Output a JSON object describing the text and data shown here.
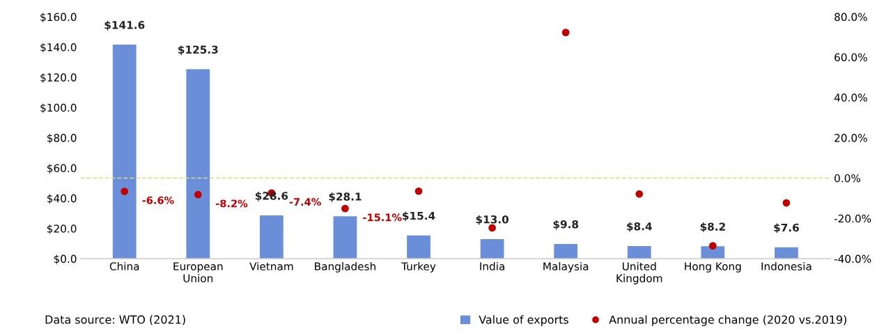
{
  "chart_data": {
    "type": "bar",
    "categories": [
      "China",
      "European\nUnion",
      "Vietnam",
      "Bangladesh",
      "Turkey",
      "India",
      "Malaysia",
      "United\nKingdom",
      "Hong Kong",
      "Indonesia"
    ],
    "series": [
      {
        "name": "Value of exports",
        "color": "#6a8fd8",
        "values": [
          141.6,
          125.3,
          28.6,
          28.1,
          15.4,
          13.0,
          9.8,
          8.4,
          8.2,
          7.6
        ],
        "value_labels": [
          "$141.6",
          "$125.3",
          "$28.6",
          "$28.1",
          "$15.4",
          "$13.0",
          "$9.8",
          "$8.4",
          "$8.2",
          "$7.6"
        ]
      },
      {
        "name": "Annual percentage change (2020 vs.2019)",
        "type": "scatter",
        "axis": "y2",
        "color": "#c00000",
        "marker": "circle",
        "values": [
          -6.6,
          -8.2,
          -7.4,
          -15.1,
          -6.5,
          -24.7,
          72.2,
          -7.9,
          -33.6,
          -12.3
        ],
        "value_labels": [
          "-6.6%",
          "-8.2%",
          "-7.4%",
          "-15.1%",
          null,
          null,
          null,
          null,
          null,
          null
        ]
      }
    ],
    "ylim": [
      0,
      160
    ],
    "yticks": [
      {
        "value": 0,
        "label": "$0.0"
      },
      {
        "value": 20,
        "label": "$20.0"
      },
      {
        "value": 40,
        "label": "$40.0"
      },
      {
        "value": 60,
        "label": "$60.0"
      },
      {
        "value": 80,
        "label": "$80.0"
      },
      {
        "value": 100,
        "label": "$100.0"
      },
      {
        "value": 120,
        "label": "$120.0"
      },
      {
        "value": 140,
        "label": "$140.0"
      },
      {
        "value": 160,
        "label": "$160.0"
      }
    ],
    "y2lim": [
      -40,
      80
    ],
    "y2ticks": [
      {
        "value": -40,
        "label": "-40.0%"
      },
      {
        "value": -20,
        "label": "-20.0%"
      },
      {
        "value": 0,
        "label": "0.0%"
      },
      {
        "value": 20,
        "label": "20.0%"
      },
      {
        "value": 40,
        "label": "40.0%"
      },
      {
        "value": 60,
        "label": "60.0%"
      },
      {
        "value": 80,
        "label": "80.0%"
      }
    ],
    "ref_lines": [
      {
        "axis": "y2",
        "value": 0,
        "color": "#d6d98a",
        "line_style": "dashed"
      }
    ],
    "grid": false,
    "legend": "bottom right",
    "annotations": [
      "Data source: WTO (2021)"
    ]
  }
}
